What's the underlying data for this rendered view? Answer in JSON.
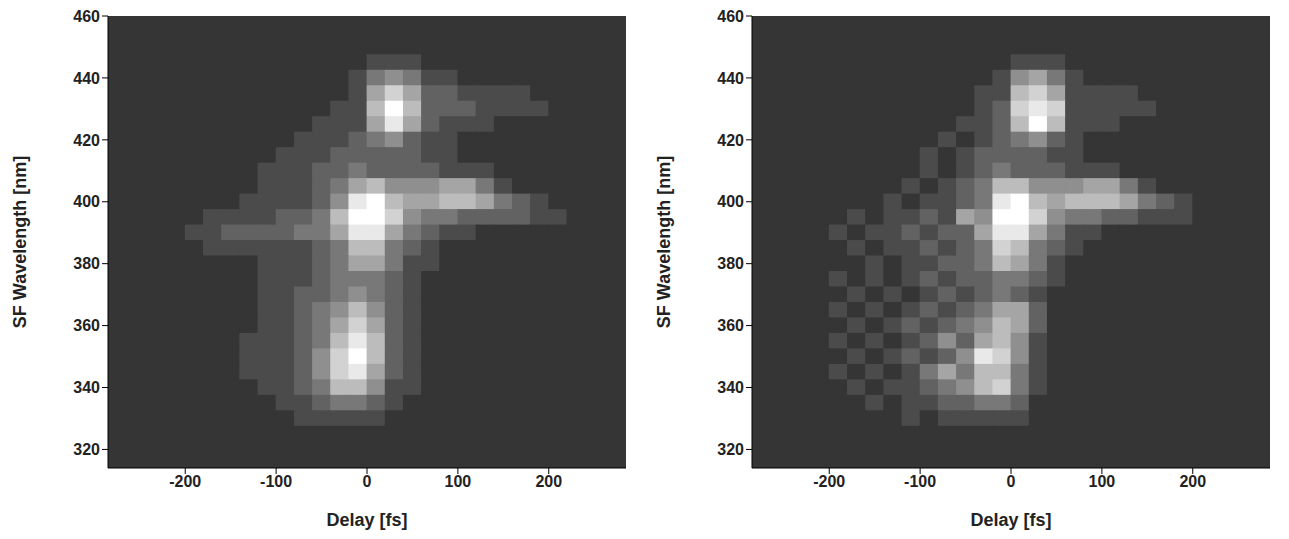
{
  "chart_data": [
    {
      "type": "heatmap",
      "x_label": "Delay [fs]",
      "y_label": "SF Wavelength [nm]",
      "xlim": [
        -285,
        285
      ],
      "ylim": [
        314,
        460
      ],
      "xticks": [
        -200,
        -100,
        0,
        100,
        200
      ],
      "yticks": [
        320,
        340,
        360,
        380,
        400,
        420,
        440,
        460
      ],
      "zlim": [
        0,
        9
      ],
      "x": [
        -210,
        -190,
        -170,
        -150,
        -130,
        -110,
        -90,
        -70,
        -50,
        -30,
        -10,
        10,
        30,
        50,
        70,
        90,
        110,
        130,
        150,
        170,
        190,
        210,
        230
      ],
      "y": [
        450,
        445,
        440,
        435,
        430,
        425,
        420,
        415,
        410,
        405,
        400,
        395,
        390,
        385,
        380,
        375,
        370,
        365,
        360,
        355,
        350,
        345,
        340,
        335,
        330,
        325
      ],
      "z": [
        [
          0,
          0,
          0,
          0,
          0,
          0,
          0,
          0,
          0,
          0,
          0,
          0,
          0,
          0,
          0,
          0,
          0,
          0,
          0,
          0,
          0,
          0,
          0
        ],
        [
          0,
          0,
          0,
          0,
          0,
          0,
          0,
          0,
          0,
          0,
          0,
          1,
          1,
          1,
          0,
          0,
          0,
          0,
          0,
          0,
          0,
          0,
          0
        ],
        [
          0,
          0,
          0,
          0,
          0,
          0,
          0,
          0,
          0,
          0,
          1,
          3,
          4,
          3,
          1,
          1,
          0,
          0,
          0,
          0,
          0,
          0,
          0
        ],
        [
          0,
          0,
          0,
          0,
          0,
          0,
          0,
          0,
          0,
          0,
          1,
          5,
          7,
          5,
          2,
          2,
          1,
          1,
          1,
          1,
          0,
          0,
          0
        ],
        [
          0,
          0,
          0,
          0,
          0,
          0,
          0,
          0,
          0,
          1,
          1,
          6,
          9,
          6,
          2,
          2,
          2,
          1,
          1,
          1,
          1,
          0,
          0
        ],
        [
          0,
          0,
          0,
          0,
          0,
          0,
          0,
          0,
          1,
          1,
          1,
          5,
          8,
          5,
          2,
          1,
          1,
          1,
          0,
          0,
          0,
          0,
          0
        ],
        [
          0,
          0,
          0,
          0,
          0,
          0,
          0,
          1,
          1,
          1,
          2,
          3,
          4,
          2,
          1,
          1,
          0,
          0,
          0,
          0,
          0,
          0,
          0
        ],
        [
          0,
          0,
          0,
          0,
          0,
          0,
          1,
          1,
          1,
          2,
          2,
          2,
          2,
          2,
          1,
          1,
          0,
          0,
          0,
          0,
          0,
          0,
          0
        ],
        [
          0,
          0,
          0,
          0,
          0,
          1,
          1,
          1,
          2,
          2,
          3,
          2,
          2,
          2,
          2,
          1,
          1,
          1,
          0,
          0,
          0,
          0,
          0
        ],
        [
          0,
          0,
          0,
          0,
          0,
          1,
          1,
          1,
          2,
          3,
          5,
          6,
          4,
          4,
          4,
          5,
          5,
          3,
          1,
          0,
          0,
          0,
          0
        ],
        [
          0,
          0,
          0,
          0,
          1,
          1,
          1,
          1,
          2,
          4,
          8,
          9,
          6,
          5,
          5,
          6,
          6,
          5,
          3,
          2,
          1,
          0,
          0
        ],
        [
          0,
          0,
          1,
          1,
          1,
          1,
          2,
          2,
          3,
          6,
          9,
          9,
          7,
          4,
          3,
          3,
          2,
          2,
          2,
          2,
          1,
          1,
          0
        ],
        [
          0,
          1,
          1,
          2,
          2,
          2,
          2,
          3,
          3,
          5,
          8,
          8,
          5,
          3,
          2,
          1,
          1,
          0,
          0,
          0,
          0,
          0,
          0
        ],
        [
          0,
          0,
          1,
          1,
          1,
          1,
          1,
          1,
          2,
          3,
          6,
          6,
          3,
          2,
          1,
          0,
          0,
          0,
          0,
          0,
          0,
          0,
          0
        ],
        [
          0,
          0,
          0,
          0,
          0,
          1,
          1,
          1,
          2,
          3,
          5,
          5,
          3,
          1,
          1,
          0,
          0,
          0,
          0,
          0,
          0,
          0,
          0
        ],
        [
          0,
          0,
          0,
          0,
          0,
          1,
          1,
          1,
          2,
          3,
          3,
          3,
          2,
          1,
          0,
          0,
          0,
          0,
          0,
          0,
          0,
          0,
          0
        ],
        [
          0,
          0,
          0,
          0,
          0,
          1,
          1,
          2,
          2,
          3,
          4,
          3,
          2,
          1,
          0,
          0,
          0,
          0,
          0,
          0,
          0,
          0,
          0
        ],
        [
          0,
          0,
          0,
          0,
          0,
          1,
          1,
          2,
          3,
          4,
          6,
          4,
          2,
          1,
          0,
          0,
          0,
          0,
          0,
          0,
          0,
          0,
          0
        ],
        [
          0,
          0,
          0,
          0,
          0,
          1,
          1,
          2,
          3,
          5,
          7,
          5,
          2,
          1,
          0,
          0,
          0,
          0,
          0,
          0,
          0,
          0,
          0
        ],
        [
          0,
          0,
          0,
          0,
          1,
          1,
          1,
          2,
          3,
          6,
          8,
          6,
          2,
          1,
          0,
          0,
          0,
          0,
          0,
          0,
          0,
          0,
          0
        ],
        [
          0,
          0,
          0,
          0,
          1,
          1,
          1,
          2,
          4,
          7,
          9,
          6,
          2,
          1,
          0,
          0,
          0,
          0,
          0,
          0,
          0,
          0,
          0
        ],
        [
          0,
          0,
          0,
          0,
          1,
          1,
          1,
          2,
          4,
          7,
          8,
          5,
          2,
          1,
          0,
          0,
          0,
          0,
          0,
          0,
          0,
          0,
          0
        ],
        [
          0,
          0,
          0,
          0,
          0,
          1,
          1,
          2,
          3,
          6,
          6,
          4,
          1,
          1,
          0,
          0,
          0,
          0,
          0,
          0,
          0,
          0,
          0
        ],
        [
          0,
          0,
          0,
          0,
          0,
          0,
          1,
          1,
          2,
          3,
          3,
          2,
          1,
          0,
          0,
          0,
          0,
          0,
          0,
          0,
          0,
          0,
          0
        ],
        [
          0,
          0,
          0,
          0,
          0,
          0,
          0,
          1,
          1,
          1,
          1,
          1,
          0,
          0,
          0,
          0,
          0,
          0,
          0,
          0,
          0,
          0,
          0
        ],
        [
          0,
          0,
          0,
          0,
          0,
          0,
          0,
          0,
          0,
          0,
          0,
          0,
          0,
          0,
          0,
          0,
          0,
          0,
          0,
          0,
          0,
          0,
          0
        ]
      ]
    },
    {
      "type": "heatmap",
      "x_label": "Delay [fs]",
      "y_label": "SF Wavelength [nm]",
      "xlim": [
        -285,
        285
      ],
      "ylim": [
        314,
        460
      ],
      "xticks": [
        -200,
        -100,
        0,
        100,
        200
      ],
      "yticks": [
        320,
        340,
        360,
        380,
        400,
        420,
        440,
        460
      ],
      "zlim": [
        0,
        9
      ],
      "x": [
        -210,
        -190,
        -170,
        -150,
        -130,
        -110,
        -90,
        -70,
        -50,
        -30,
        -10,
        10,
        30,
        50,
        70,
        90,
        110,
        130,
        150,
        170,
        190,
        210,
        230
      ],
      "y": [
        450,
        445,
        440,
        435,
        430,
        425,
        420,
        415,
        410,
        405,
        400,
        395,
        390,
        385,
        380,
        375,
        370,
        365,
        360,
        355,
        350,
        345,
        340,
        335,
        330,
        325
      ],
      "z": [
        [
          0,
          0,
          0,
          0,
          0,
          0,
          0,
          0,
          0,
          0,
          0,
          0,
          0,
          0,
          0,
          0,
          0,
          0,
          0,
          0,
          0,
          0,
          0
        ],
        [
          0,
          0,
          0,
          0,
          0,
          0,
          0,
          0,
          0,
          0,
          0,
          1,
          1,
          1,
          0,
          0,
          0,
          0,
          0,
          0,
          0,
          0,
          0
        ],
        [
          0,
          0,
          0,
          0,
          0,
          0,
          0,
          0,
          0,
          0,
          1,
          4,
          5,
          3,
          1,
          0,
          0,
          0,
          0,
          0,
          0,
          0,
          0
        ],
        [
          0,
          0,
          0,
          0,
          0,
          0,
          0,
          0,
          0,
          1,
          1,
          6,
          7,
          5,
          1,
          1,
          1,
          1,
          0,
          0,
          0,
          0,
          0
        ],
        [
          0,
          0,
          0,
          0,
          0,
          0,
          0,
          0,
          0,
          1,
          2,
          7,
          8,
          7,
          1,
          1,
          1,
          1,
          1,
          0,
          0,
          0,
          0
        ],
        [
          0,
          0,
          0,
          0,
          0,
          0,
          0,
          0,
          1,
          1,
          2,
          6,
          9,
          6,
          1,
          1,
          1,
          0,
          0,
          0,
          0,
          0,
          0
        ],
        [
          0,
          0,
          0,
          0,
          0,
          0,
          0,
          1,
          0,
          1,
          2,
          3,
          4,
          2,
          1,
          0,
          0,
          0,
          0,
          0,
          0,
          0,
          0
        ],
        [
          0,
          0,
          0,
          0,
          0,
          0,
          1,
          0,
          1,
          2,
          2,
          2,
          2,
          1,
          1,
          0,
          0,
          0,
          0,
          0,
          0,
          0,
          0
        ],
        [
          0,
          0,
          0,
          0,
          0,
          0,
          1,
          0,
          1,
          2,
          3,
          2,
          2,
          2,
          1,
          1,
          1,
          0,
          0,
          0,
          0,
          0,
          0
        ],
        [
          0,
          0,
          0,
          0,
          0,
          1,
          0,
          1,
          2,
          3,
          6,
          6,
          4,
          4,
          4,
          5,
          5,
          3,
          1,
          0,
          0,
          0,
          0
        ],
        [
          0,
          0,
          0,
          0,
          1,
          0,
          1,
          1,
          2,
          3,
          8,
          9,
          6,
          5,
          6,
          6,
          6,
          5,
          3,
          2,
          1,
          0,
          0
        ],
        [
          0,
          0,
          1,
          0,
          1,
          1,
          2,
          1,
          5,
          4,
          9,
          9,
          7,
          4,
          3,
          3,
          2,
          2,
          1,
          1,
          1,
          0,
          0
        ],
        [
          0,
          1,
          0,
          1,
          1,
          2,
          1,
          2,
          2,
          5,
          8,
          8,
          5,
          3,
          1,
          1,
          0,
          0,
          0,
          0,
          0,
          0,
          0
        ],
        [
          0,
          0,
          1,
          0,
          1,
          1,
          2,
          1,
          2,
          3,
          7,
          6,
          3,
          2,
          1,
          0,
          0,
          0,
          0,
          0,
          0,
          0,
          0
        ],
        [
          0,
          0,
          0,
          1,
          0,
          1,
          1,
          2,
          2,
          3,
          6,
          5,
          3,
          1,
          0,
          0,
          0,
          0,
          0,
          0,
          0,
          0,
          0
        ],
        [
          0,
          1,
          0,
          1,
          0,
          1,
          2,
          1,
          2,
          2,
          3,
          3,
          2,
          1,
          0,
          0,
          0,
          0,
          0,
          0,
          0,
          0,
          0
        ],
        [
          0,
          0,
          1,
          0,
          1,
          0,
          1,
          2,
          1,
          2,
          3,
          2,
          1,
          0,
          0,
          0,
          0,
          0,
          0,
          0,
          0,
          0,
          0
        ],
        [
          0,
          1,
          0,
          1,
          0,
          1,
          2,
          1,
          2,
          3,
          5,
          5,
          2,
          0,
          0,
          0,
          0,
          0,
          0,
          0,
          0,
          0,
          0
        ],
        [
          0,
          0,
          1,
          0,
          1,
          2,
          1,
          2,
          3,
          4,
          6,
          5,
          2,
          0,
          0,
          0,
          0,
          0,
          0,
          0,
          0,
          0,
          0
        ],
        [
          0,
          1,
          0,
          1,
          0,
          1,
          2,
          4,
          2,
          5,
          6,
          4,
          1,
          0,
          0,
          0,
          0,
          0,
          0,
          0,
          0,
          0,
          0
        ],
        [
          0,
          0,
          1,
          0,
          1,
          2,
          1,
          2,
          4,
          8,
          7,
          4,
          1,
          0,
          0,
          0,
          0,
          0,
          0,
          0,
          0,
          0,
          0
        ],
        [
          0,
          1,
          0,
          1,
          0,
          1,
          3,
          5,
          3,
          6,
          6,
          3,
          1,
          0,
          0,
          0,
          0,
          0,
          0,
          0,
          0,
          0,
          0
        ],
        [
          0,
          0,
          1,
          0,
          1,
          1,
          2,
          3,
          4,
          6,
          7,
          3,
          1,
          0,
          0,
          0,
          0,
          0,
          0,
          0,
          0,
          0,
          0
        ],
        [
          0,
          0,
          0,
          1,
          0,
          1,
          1,
          2,
          2,
          3,
          3,
          2,
          0,
          0,
          0,
          0,
          0,
          0,
          0,
          0,
          0,
          0,
          0
        ],
        [
          0,
          0,
          0,
          0,
          0,
          1,
          0,
          1,
          1,
          1,
          1,
          1,
          0,
          0,
          0,
          0,
          0,
          0,
          0,
          0,
          0,
          0,
          0
        ],
        [
          0,
          0,
          0,
          0,
          0,
          0,
          0,
          0,
          0,
          0,
          0,
          0,
          0,
          0,
          0,
          0,
          0,
          0,
          0,
          0,
          0,
          0,
          0
        ]
      ]
    }
  ]
}
